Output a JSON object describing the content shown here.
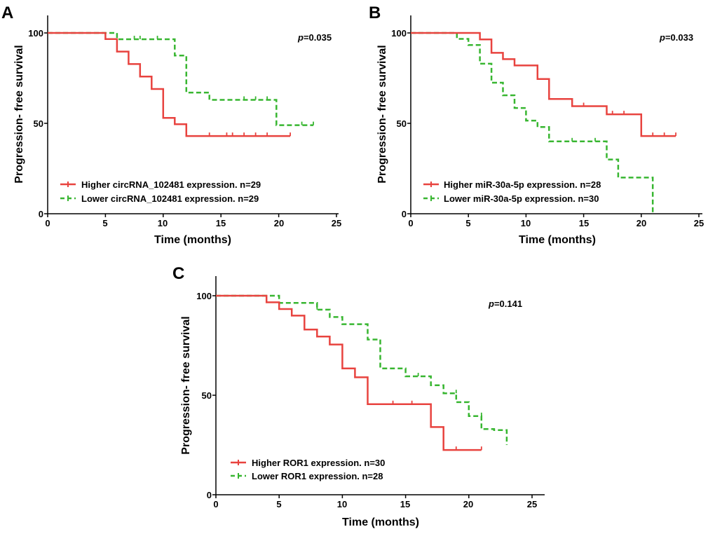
{
  "colors": {
    "higher": "#e8433f",
    "lower": "#38b631",
    "axis": "#000000"
  },
  "chart_data": [
    {
      "panel": "A",
      "type": "line",
      "xlabel": "Time (months)",
      "ylabel": "Progression- free survival",
      "xlim": [
        0,
        25
      ],
      "ylim": [
        0,
        100
      ],
      "xticks": [
        "0",
        "5",
        "10",
        "15",
        "20",
        "25"
      ],
      "yticks": [
        "0",
        "50",
        "100"
      ],
      "p_label": "p",
      "p_value": "=0.035",
      "legend_position": "bottom-left",
      "series": [
        {
          "name": "Higher circRNA_102481 expression. n=29",
          "style": "solid",
          "steps": [
            [
              0,
              100
            ],
            [
              5,
              100
            ],
            [
              5,
              96.6
            ],
            [
              6,
              96.6
            ],
            [
              6,
              89.7
            ],
            [
              7,
              89.7
            ],
            [
              7,
              82.8
            ],
            [
              8,
              82.8
            ],
            [
              8,
              75.9
            ],
            [
              9,
              75.9
            ],
            [
              9,
              69
            ],
            [
              10,
              69
            ],
            [
              10,
              53
            ],
            [
              11,
              53
            ],
            [
              11,
              49.5
            ],
            [
              12,
              49.5
            ],
            [
              12,
              43
            ],
            [
              21,
              43
            ]
          ],
          "censors": [
            [
              14,
              43
            ],
            [
              15.5,
              43
            ],
            [
              16,
              43
            ],
            [
              17,
              43
            ],
            [
              18,
              43
            ],
            [
              19,
              43
            ],
            [
              21,
              43
            ]
          ]
        },
        {
          "name": "Lower circRNA_102481 expression. n=29",
          "style": "dashed",
          "steps": [
            [
              0,
              100
            ],
            [
              6,
              100
            ],
            [
              6,
              96.5
            ],
            [
              11,
              96.5
            ],
            [
              11,
              87.5
            ],
            [
              12,
              87.5
            ],
            [
              12,
              67
            ],
            [
              14,
              67
            ],
            [
              14,
              63
            ],
            [
              19.8,
              63
            ],
            [
              19.8,
              49
            ],
            [
              23,
              49
            ]
          ],
          "censors": [
            [
              7.5,
              96.5
            ],
            [
              8,
              96.5
            ],
            [
              9.5,
              96.5
            ],
            [
              17,
              63
            ],
            [
              18,
              63
            ],
            [
              19,
              63
            ],
            [
              22,
              49
            ],
            [
              23,
              49
            ]
          ]
        }
      ]
    },
    {
      "panel": "B",
      "type": "line",
      "xlabel": "Time (months)",
      "ylabel": "Progression- free survival",
      "xlim": [
        0,
        25
      ],
      "ylim": [
        0,
        100
      ],
      "xticks": [
        "0",
        "5",
        "10",
        "15",
        "20",
        "25"
      ],
      "yticks": [
        "0",
        "50",
        "100"
      ],
      "p_label": "p",
      "p_value": "=0.033",
      "legend_position": "bottom-left",
      "series": [
        {
          "name": "Higher miR-30a-5p  expression. n=28",
          "style": "solid",
          "steps": [
            [
              0,
              100
            ],
            [
              6,
              100
            ],
            [
              6,
              96.4
            ],
            [
              7,
              96.4
            ],
            [
              7,
              89
            ],
            [
              8,
              89
            ],
            [
              8,
              85.5
            ],
            [
              9,
              85.5
            ],
            [
              9,
              82
            ],
            [
              11,
              82
            ],
            [
              11,
              74.5
            ],
            [
              12,
              74.5
            ],
            [
              12,
              63.5
            ],
            [
              14,
              63.5
            ],
            [
              14,
              59.5
            ],
            [
              17,
              59.5
            ],
            [
              17,
              55
            ],
            [
              20,
              55
            ],
            [
              20,
              43
            ],
            [
              23,
              43
            ]
          ],
          "censors": [
            [
              15,
              59.5
            ],
            [
              17.5,
              55
            ],
            [
              18.5,
              55
            ],
            [
              21,
              43
            ],
            [
              22,
              43
            ],
            [
              23,
              43
            ]
          ]
        },
        {
          "name": "Lower miR-30a-5p  expression. n=30",
          "style": "dashed",
          "steps": [
            [
              0,
              100
            ],
            [
              4,
              100
            ],
            [
              4,
              96.7
            ],
            [
              5,
              96.7
            ],
            [
              5,
              93.3
            ],
            [
              6,
              93.3
            ],
            [
              6,
              83
            ],
            [
              7,
              83
            ],
            [
              7,
              72.5
            ],
            [
              8,
              72.5
            ],
            [
              8,
              65.5
            ],
            [
              9,
              65.5
            ],
            [
              9,
              58.5
            ],
            [
              10,
              58.5
            ],
            [
              10,
              51.5
            ],
            [
              11,
              51.5
            ],
            [
              11,
              48
            ],
            [
              12,
              48
            ],
            [
              12,
              40
            ],
            [
              17,
              40
            ],
            [
              17,
              30
            ],
            [
              18,
              30
            ],
            [
              18,
              20
            ],
            [
              21,
              20
            ],
            [
              21,
              0
            ]
          ],
          "censors": [
            [
              14,
              40
            ],
            [
              16,
              40
            ]
          ]
        }
      ]
    },
    {
      "panel": "C",
      "type": "line",
      "xlabel": "Time (months)",
      "ylabel": "Progression- free survival",
      "xlim": [
        0,
        25
      ],
      "ylim": [
        0,
        100
      ],
      "xticks": [
        "0",
        "5",
        "10",
        "15",
        "20",
        "25"
      ],
      "yticks": [
        "0",
        "50",
        "100"
      ],
      "p_label": "p",
      "p_value": "=0.141",
      "legend_position": "bottom-left",
      "series": [
        {
          "name": "Higher ROR1 expression. n=30",
          "style": "solid",
          "steps": [
            [
              0,
              100
            ],
            [
              4,
              100
            ],
            [
              4,
              96.7
            ],
            [
              5,
              96.7
            ],
            [
              5,
              93.3
            ],
            [
              6,
              93.3
            ],
            [
              6,
              90
            ],
            [
              7,
              90
            ],
            [
              7,
              83
            ],
            [
              8,
              83
            ],
            [
              8,
              79.5
            ],
            [
              9,
              79.5
            ],
            [
              9,
              75.5
            ],
            [
              10,
              75.5
            ],
            [
              10,
              63.5
            ],
            [
              11,
              63.5
            ],
            [
              11,
              59
            ],
            [
              12,
              59
            ],
            [
              12,
              45.5
            ],
            [
              17,
              45.5
            ],
            [
              17,
              34
            ],
            [
              18,
              34
            ],
            [
              18,
              22.5
            ],
            [
              21,
              22.5
            ]
          ],
          "censors": [
            [
              14,
              45.5
            ],
            [
              15.5,
              45.5
            ],
            [
              19,
              22.5
            ],
            [
              21,
              22.5
            ]
          ]
        },
        {
          "name": "Lower ROR1 expression. n=28",
          "style": "dashed",
          "steps": [
            [
              0,
              100
            ],
            [
              5,
              100
            ],
            [
              5,
              96.4
            ],
            [
              8,
              96.4
            ],
            [
              8,
              93
            ],
            [
              9,
              93
            ],
            [
              9,
              89.3
            ],
            [
              10,
              89.3
            ],
            [
              10,
              85.7
            ],
            [
              12,
              85.7
            ],
            [
              12,
              78
            ],
            [
              13,
              78
            ],
            [
              13,
              63.5
            ],
            [
              15,
              63.5
            ],
            [
              15,
              59.5
            ],
            [
              17,
              59.5
            ],
            [
              17,
              55
            ],
            [
              18,
              55
            ],
            [
              18,
              51
            ],
            [
              19,
              51
            ],
            [
              19,
              46.5
            ],
            [
              20,
              46.5
            ],
            [
              20,
              39.5
            ],
            [
              21,
              39.5
            ],
            [
              21,
              33
            ],
            [
              22,
              33
            ],
            [
              22,
              32.5
            ],
            [
              23,
              32.5
            ],
            [
              23,
              25
            ]
          ],
          "censors": [
            [
              8,
              93
            ],
            [
              16,
              59.5
            ],
            [
              19,
              51
            ],
            [
              21,
              39.5
            ]
          ]
        }
      ]
    }
  ]
}
